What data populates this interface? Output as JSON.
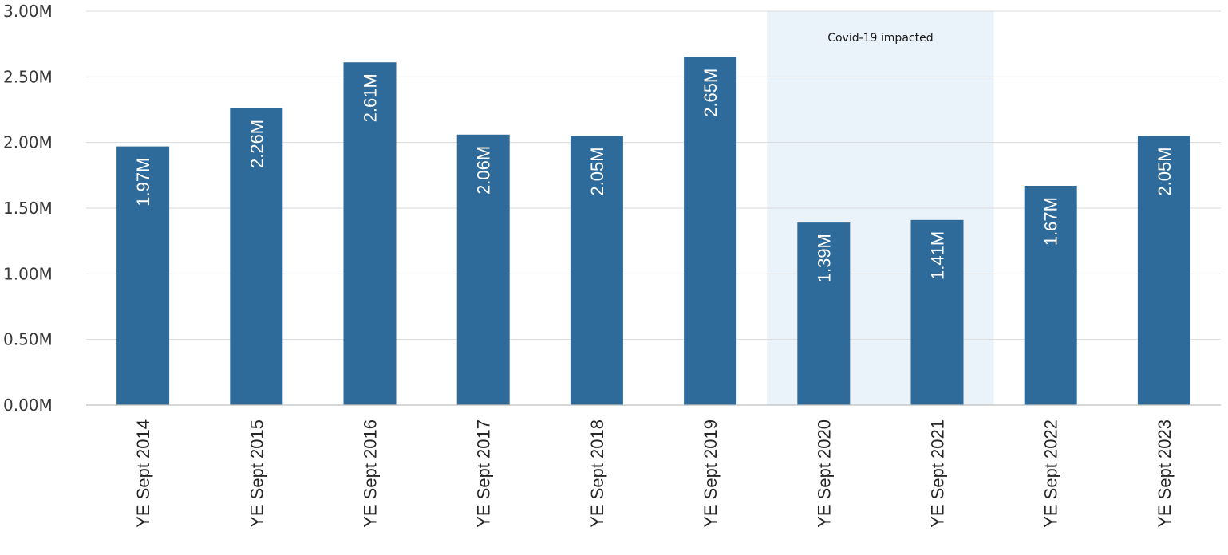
{
  "chart_data": {
    "type": "bar",
    "categories": [
      "YE Sept 2014",
      "YE Sept 2015",
      "YE Sept 2016",
      "YE Sept 2017",
      "YE Sept 2018",
      "YE Sept 2019",
      "YE Sept 2020",
      "YE Sept 2021",
      "YE Sept 2022",
      "YE Sept 2023"
    ],
    "values": [
      1.97,
      2.26,
      2.61,
      2.06,
      2.05,
      2.65,
      1.39,
      1.41,
      1.67,
      2.05
    ],
    "data_labels": [
      "1.97M",
      "2.26M",
      "2.61M",
      "2.06M",
      "2.05M",
      "2.65M",
      "1.39M",
      "1.41M",
      "1.67M",
      "2.05M"
    ],
    "yticks": [
      0,
      0.5,
      1.0,
      1.5,
      2.0,
      2.5,
      3.0
    ],
    "ytick_labels": [
      "0.00M",
      "0.50M",
      "1.00M",
      "1.50M",
      "2.00M",
      "2.50M",
      "3.00M"
    ],
    "ylim": [
      0,
      3.0
    ],
    "title": "",
    "xlabel": "",
    "ylabel": "",
    "grid": true,
    "bar_color": "#2f6b9a",
    "highlight": {
      "label": "Covid-19 impacted",
      "categories": [
        "YE Sept 2020",
        "YE Sept 2021"
      ],
      "color": "#eaf2fa"
    }
  }
}
